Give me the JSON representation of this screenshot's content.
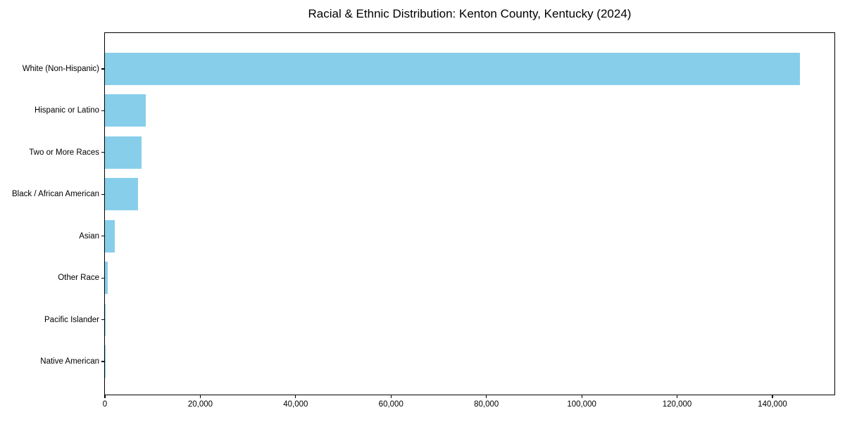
{
  "chart_data": {
    "type": "bar",
    "orientation": "horizontal",
    "title": "Racial & Ethnic Distribution: Kenton County, Kentucky (2024)",
    "categories": [
      "White (Non-Hispanic)",
      "Hispanic or Latino",
      "Two or More Races",
      "Black / African American",
      "Asian",
      "Other Race",
      "Pacific Islander",
      "Native American"
    ],
    "values": [
      145700,
      8500,
      7700,
      6900,
      2100,
      650,
      200,
      100
    ],
    "bar_color": "#87CEEB",
    "text_color": "#000000",
    "xlabel": "",
    "ylabel": "",
    "xlim": [
      0,
      153000
    ],
    "xticks": [
      0,
      20000,
      40000,
      60000,
      80000,
      100000,
      120000,
      140000
    ],
    "xtick_labels": [
      "0",
      "20,000",
      "40,000",
      "60,000",
      "80,000",
      "100,000",
      "120,000",
      "140,000"
    ],
    "grid": false,
    "legend_position": "none"
  }
}
